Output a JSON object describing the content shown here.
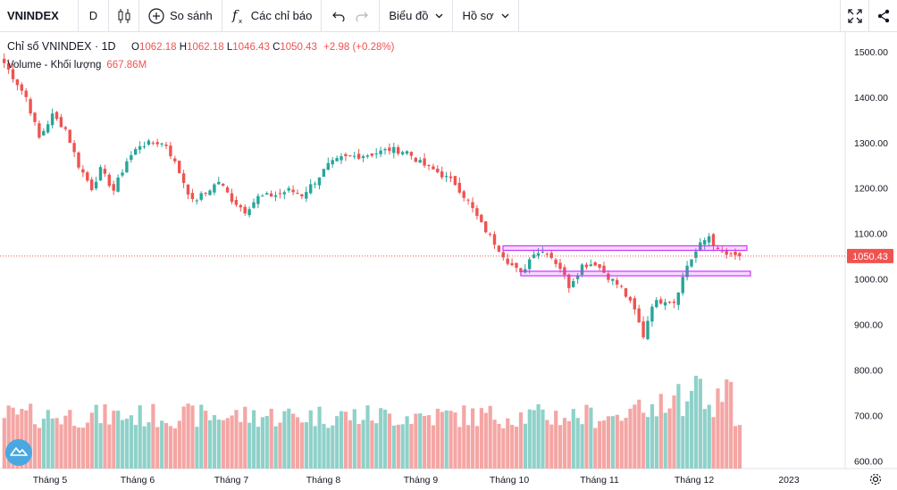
{
  "toolbar": {
    "symbol": "VNINDEX",
    "interval": "D",
    "compare_label": "So sánh",
    "indicators_label": "Các chỉ báo",
    "chart_label": "Biểu đồ",
    "profile_label": "Hồ sơ"
  },
  "legend": {
    "title": "Chỉ số VNINDEX · 1D",
    "open_key": "O",
    "open": "1062.18",
    "high_key": "H",
    "high": "1062.18",
    "low_key": "L",
    "low": "1046.43",
    "close_key": "C",
    "close": "1050.43",
    "change": "+2.98 (+0.28%)",
    "volume_label": "Volume - Khối lượng",
    "volume_value": "667.86M"
  },
  "price_tag": "1050.43",
  "colors": {
    "up": "#26a69a",
    "down": "#ef5350",
    "up_volume": "#8fd1c9",
    "down_volume": "#f4a6a4",
    "zone": "#cc33ff"
  },
  "chart_data": {
    "type": "candlestick",
    "x_labels": [
      "Tháng 5",
      "Tháng 6",
      "Tháng 7",
      "Tháng 8",
      "Tháng 9",
      "Tháng 10",
      "Tháng 11",
      "Tháng 12",
      "2023"
    ],
    "price_ticks": [
      "1500.00",
      "1400.00",
      "1300.00",
      "1200.00",
      "1100.00",
      "1000.00",
      "900.00",
      "800.00",
      "700.00",
      "600.00"
    ],
    "price_range": [
      583,
      1543
    ],
    "zones": [
      [
        1063,
        1073
      ],
      [
        1007,
        1017
      ]
    ],
    "waypoints": [
      [
        0,
        1475
      ],
      [
        5,
        1400
      ],
      [
        8,
        1310
      ],
      [
        11,
        1360
      ],
      [
        14,
        1330
      ],
      [
        17,
        1250
      ],
      [
        20,
        1200
      ],
      [
        22,
        1240
      ],
      [
        25,
        1195
      ],
      [
        28,
        1260
      ],
      [
        31,
        1295
      ],
      [
        35,
        1300
      ],
      [
        37,
        1295
      ],
      [
        40,
        1235
      ],
      [
        43,
        1170
      ],
      [
        46,
        1190
      ],
      [
        49,
        1215
      ],
      [
        52,
        1175
      ],
      [
        55,
        1150
      ],
      [
        58,
        1180
      ],
      [
        62,
        1185
      ],
      [
        65,
        1195
      ],
      [
        68,
        1185
      ],
      [
        71,
        1215
      ],
      [
        74,
        1250
      ],
      [
        77,
        1265
      ],
      [
        80,
        1270
      ],
      [
        84,
        1275
      ],
      [
        88,
        1285
      ],
      [
        92,
        1280
      ],
      [
        95,
        1255
      ],
      [
        99,
        1235
      ],
      [
        103,
        1210
      ],
      [
        106,
        1170
      ],
      [
        109,
        1120
      ],
      [
        112,
        1080
      ],
      [
        115,
        1040
      ],
      [
        118,
        1010
      ],
      [
        121,
        1060
      ],
      [
        124,
        1060
      ],
      [
        127,
        1025
      ],
      [
        129,
        985
      ],
      [
        132,
        1030
      ],
      [
        135,
        1035
      ],
      [
        138,
        1005
      ],
      [
        141,
        980
      ],
      [
        144,
        930
      ],
      [
        146,
        875
      ],
      [
        148,
        945
      ],
      [
        151,
        955
      ],
      [
        153,
        950
      ],
      [
        156,
        1030
      ],
      [
        159,
        1075
      ],
      [
        161,
        1095
      ],
      [
        163,
        1060
      ],
      [
        166,
        1050
      ],
      [
        168,
        1050
      ]
    ]
  }
}
